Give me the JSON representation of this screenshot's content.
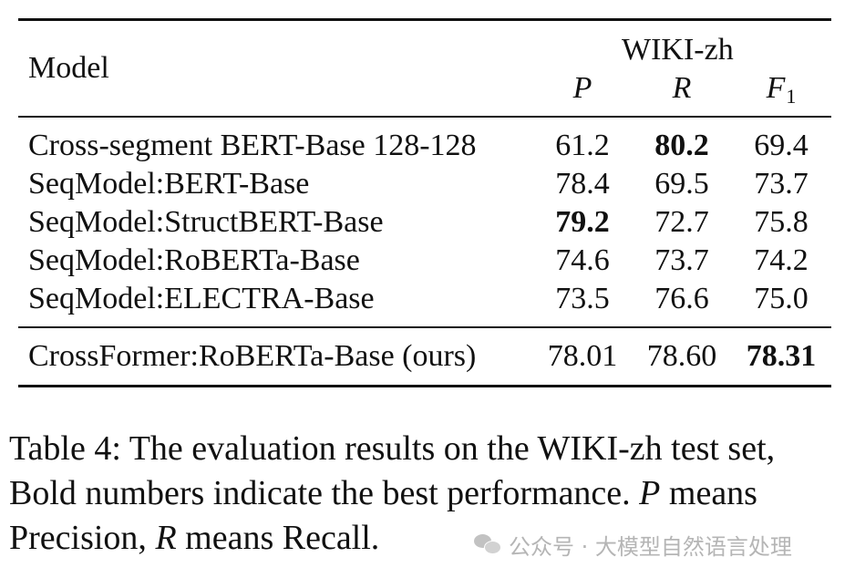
{
  "table": {
    "header": {
      "model_label": "Model",
      "group_label": "WIKI-zh",
      "col_p": "P",
      "col_r": "R",
      "col_f1_main": "F",
      "col_f1_sub": "1"
    },
    "rows": [
      {
        "model": "Cross-segment BERT-Base 128-128",
        "p": "61.2",
        "r": "80.2",
        "f1": "69.4",
        "bold": [
          "r"
        ]
      },
      {
        "model": "SeqModel:BERT-Base",
        "p": "78.4",
        "r": "69.5",
        "f1": "73.7",
        "bold": []
      },
      {
        "model": "SeqModel:StructBERT-Base",
        "p": "79.2",
        "r": "72.7",
        "f1": "75.8",
        "bold": [
          "p"
        ]
      },
      {
        "model": "SeqModel:RoBERTa-Base",
        "p": "74.6",
        "r": "73.7",
        "f1": "74.2",
        "bold": []
      },
      {
        "model": "SeqModel:ELECTRA-Base",
        "p": "73.5",
        "r": "76.6",
        "f1": "75.0",
        "bold": []
      }
    ],
    "ours_row": {
      "model": "CrossFormer:RoBERTa-Base (ours)",
      "p": "78.01",
      "r": "78.60",
      "f1": "78.31",
      "bold": [
        "f1"
      ]
    }
  },
  "caption": {
    "line1": "Table 4:  The evaluation results on the WIKI-zh test set,",
    "line2_a": "Bold numbers indicate the best performance. ",
    "line2_var": "P",
    "line2_b": " means",
    "line3_a": "Precision, ",
    "line3_var": "R",
    "line3_b": " means Recall."
  },
  "watermark": {
    "icon": "wechat-icon",
    "text": "公众号 · 大模型自然语言处理"
  }
}
